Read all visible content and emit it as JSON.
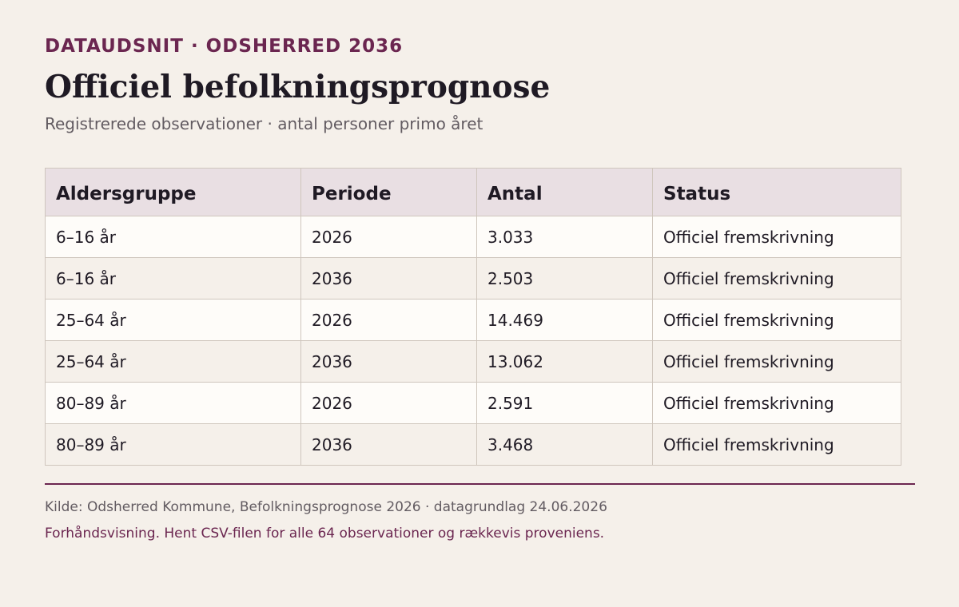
{
  "header": {
    "eyebrow": "DATAUDSNIT · ODSHERRED 2036",
    "title": "Officiel befolkningsprognose",
    "subtitle": "Registrerede observationer · antal personer primo året"
  },
  "table": {
    "columns": [
      "Aldersgruppe",
      "Periode",
      "Antal",
      "Status"
    ],
    "rows": [
      [
        "6–16 år",
        "2026",
        "3.033",
        "Officiel fremskrivning"
      ],
      [
        "6–16 år",
        "2036",
        "2.503",
        "Officiel fremskrivning"
      ],
      [
        "25–64 år",
        "2026",
        "14.469",
        "Officiel fremskrivning"
      ],
      [
        "25–64 år",
        "2036",
        "13.062",
        "Officiel fremskrivning"
      ],
      [
        "80–89 år",
        "2026",
        "2.591",
        "Officiel fremskrivning"
      ],
      [
        "80–89 år",
        "2036",
        "3.468",
        "Officiel fremskrivning"
      ]
    ]
  },
  "footer": {
    "source": "Kilde: Odsherred Kommune, Befolkningsprognose 2026 · datagrundlag 24.06.2026",
    "note": "Forhåndsvisning. Hent CSV-filen for alle 64 observationer og rækkevis proveniens."
  },
  "colors": {
    "accent": "#6b2650",
    "background": "#f5f0ea",
    "header_fill": "#e9dfe3",
    "row_light": "#fefcf9",
    "border": "#cfc6bd"
  }
}
